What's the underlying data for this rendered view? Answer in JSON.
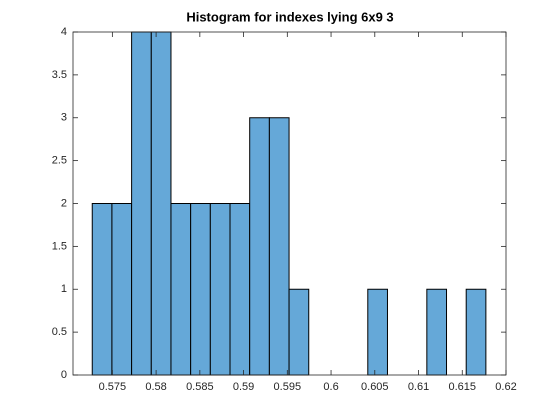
{
  "chart_data": {
    "type": "histogram",
    "title": "Histogram for indexes lying 6x9 3",
    "bins": [
      0.5727,
      0.57495,
      0.5772,
      0.57945,
      0.5817,
      0.58395,
      0.5862,
      0.58845,
      0.5907,
      0.59295,
      0.5952,
      0.59745,
      0.5997,
      0.60195,
      0.6042,
      0.60645,
      0.6087,
      0.61095,
      0.6132,
      0.61545,
      0.6177
    ],
    "values": [
      2,
      2,
      4,
      4,
      2,
      2,
      2,
      2,
      3,
      3,
      1,
      0,
      0,
      0,
      1,
      0,
      0,
      1,
      0,
      1
    ],
    "color": "#65a8d8",
    "xlim": [
      0.5705,
      0.62
    ],
    "xticks": [
      0.575,
      0.58,
      0.585,
      0.59,
      0.595,
      0.6,
      0.605,
      0.61,
      0.615,
      0.62
    ],
    "ylim": [
      0,
      4
    ],
    "yticks": [
      0,
      0.5,
      1,
      1.5,
      2,
      2.5,
      3,
      3.5,
      4
    ]
  }
}
